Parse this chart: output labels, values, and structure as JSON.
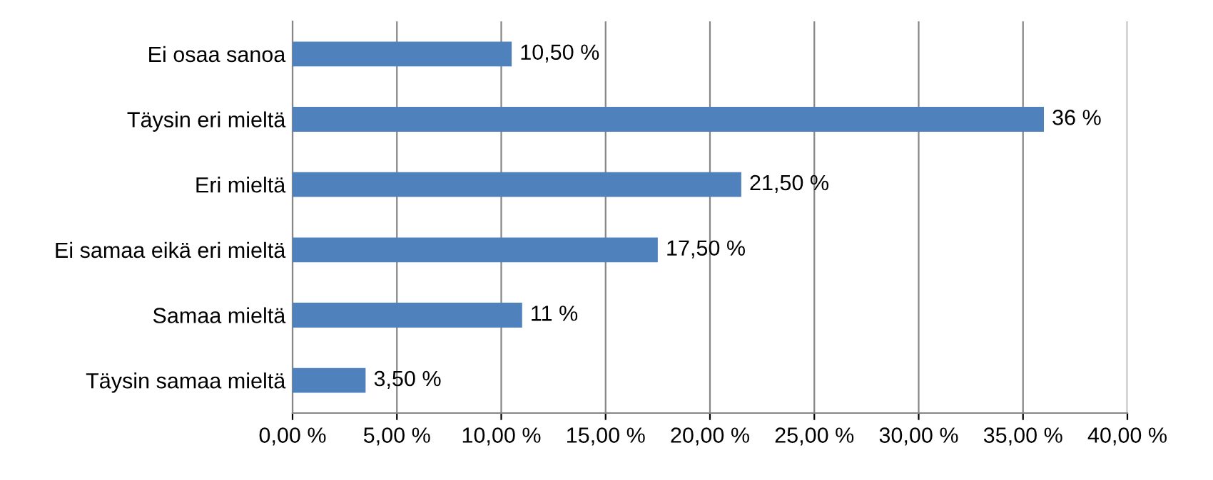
{
  "chart_data": {
    "type": "bar",
    "orientation": "horizontal",
    "categories": [
      "Ei osaa sanoa",
      "Täysin eri mieltä",
      "Eri mieltä",
      "Ei samaa eikä eri mieltä",
      "Samaa mieltä",
      "Täysin samaa mieltä"
    ],
    "values": [
      10.5,
      36,
      21.5,
      17.5,
      11,
      3.5
    ],
    "value_labels": [
      "10,50 %",
      "36 %",
      "21,50 %",
      "17,50 %",
      "11 %",
      "3,50 %"
    ],
    "color": "#4f81bd",
    "xlim": [
      0,
      40
    ],
    "xticks": [
      {
        "value": 0,
        "label": "0,00 %"
      },
      {
        "value": 5,
        "label": "5,00 %"
      },
      {
        "value": 10,
        "label": "10,00 %"
      },
      {
        "value": 15,
        "label": "15,00 %"
      },
      {
        "value": 20,
        "label": "20,00 %"
      },
      {
        "value": 25,
        "label": "25,00 %"
      },
      {
        "value": 30,
        "label": "30,00 %"
      },
      {
        "value": 35,
        "label": "35,00 %"
      },
      {
        "value": 40,
        "label": "40,00 %"
      }
    ],
    "grid": "x",
    "legend": false
  }
}
